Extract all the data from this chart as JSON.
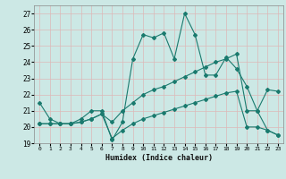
{
  "xlabel": "Humidex (Indice chaleur)",
  "xlim": [
    -0.5,
    23.5
  ],
  "ylim": [
    19,
    27.5
  ],
  "yticks": [
    19,
    20,
    21,
    22,
    23,
    24,
    25,
    26,
    27
  ],
  "xticks": [
    0,
    1,
    2,
    3,
    4,
    5,
    6,
    7,
    8,
    9,
    10,
    11,
    12,
    13,
    14,
    15,
    16,
    17,
    18,
    19,
    20,
    21,
    22,
    23
  ],
  "bg_color": "#cce8e5",
  "line_color": "#1a7a6e",
  "grid_color": "#ddb8b8",
  "line1_y": [
    21.5,
    20.5,
    20.2,
    20.2,
    20.5,
    21.0,
    21.0,
    19.2,
    20.3,
    24.2,
    25.7,
    25.5,
    25.8,
    24.2,
    27.0,
    25.7,
    23.2,
    23.2,
    24.3,
    23.6,
    22.5,
    21.0,
    19.8,
    19.5
  ],
  "line2_y": [
    20.2,
    20.2,
    20.2,
    20.2,
    20.3,
    20.5,
    20.8,
    20.3,
    21.0,
    21.5,
    22.0,
    22.3,
    22.5,
    22.8,
    23.1,
    23.4,
    23.7,
    24.0,
    24.2,
    24.5,
    21.0,
    21.0,
    22.3,
    22.2
  ],
  "line3_y": [
    20.2,
    20.2,
    20.2,
    20.2,
    20.3,
    20.5,
    20.8,
    19.3,
    19.8,
    20.2,
    20.5,
    20.7,
    20.9,
    21.1,
    21.3,
    21.5,
    21.7,
    21.9,
    22.1,
    22.2,
    20.0,
    20.0,
    19.8,
    19.5
  ]
}
